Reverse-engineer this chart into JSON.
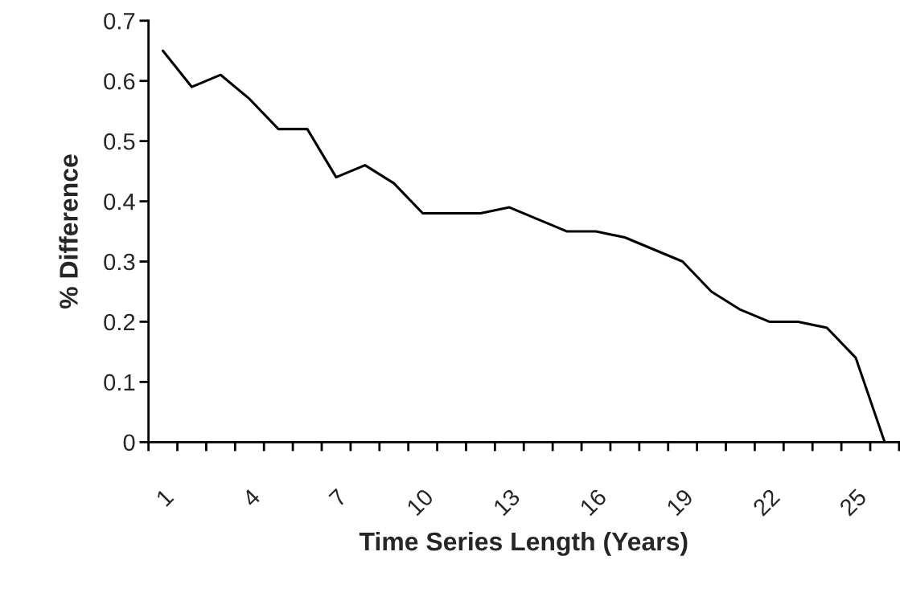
{
  "chart_data": {
    "type": "line",
    "xlabel": "Time Series Length (Years)",
    "ylabel": "% Difference",
    "categories": [
      "1",
      null,
      null,
      "4",
      null,
      null,
      "7",
      null,
      null,
      "10",
      null,
      null,
      "13",
      null,
      null,
      "16",
      null,
      null,
      "19",
      null,
      null,
      "22",
      null,
      null,
      "25",
      null
    ],
    "series": [
      {
        "color": "#000000",
        "values": [
          0.65,
          0.59,
          0.61,
          0.57,
          0.52,
          0.52,
          0.44,
          0.46,
          0.43,
          0.38,
          0.38,
          0.38,
          0.39,
          0.37,
          0.35,
          0.35,
          0.34,
          0.32,
          0.3,
          0.25,
          0.22,
          0.2,
          0.2,
          0.19,
          0.14,
          0
        ]
      }
    ],
    "ylim": [
      0,
      0.7
    ],
    "yticks": [
      0,
      0.1,
      0.2,
      0.3,
      0.4,
      0.5,
      0.6,
      0.7
    ],
    "grid": false,
    "marker": "none",
    "line_style": "solid"
  }
}
